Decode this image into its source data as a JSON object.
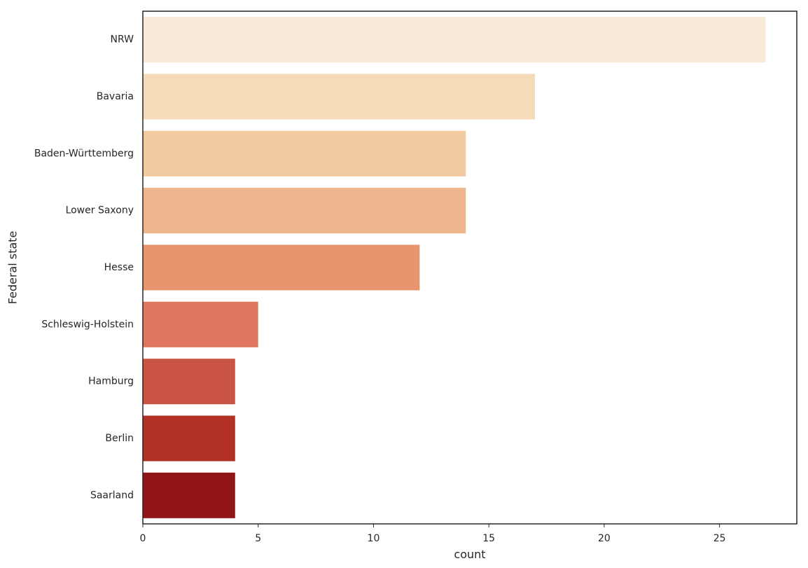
{
  "chart_data": {
    "type": "bar",
    "orientation": "horizontal",
    "categories": [
      "NRW",
      "Bavaria",
      "Baden-Württemberg",
      "Lower Saxony",
      "Hesse",
      "Schleswig-Holstein",
      "Hamburg",
      "Berlin",
      "Saarland"
    ],
    "values": [
      27,
      17,
      14,
      14,
      12,
      5,
      4,
      4,
      4
    ],
    "colors": [
      "#F9EAD7",
      "#F5DBB8",
      "#F1CA9F",
      "#EEB48B",
      "#E8946C",
      "#DF785F",
      "#CB5544",
      "#B23127",
      "#911517"
    ],
    "title": "",
    "xlabel": "count",
    "ylabel": "Federal state",
    "xlim": [
      0,
      28.35
    ],
    "xticks": [
      0,
      5,
      10,
      15,
      20,
      25
    ],
    "grid": false,
    "legend": "none"
  }
}
